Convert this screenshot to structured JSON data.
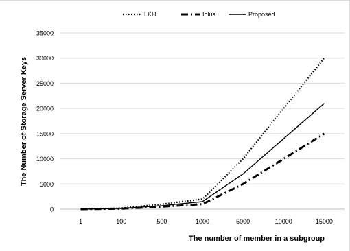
{
  "colors": {
    "series": "#000000",
    "grid": "#d9d9d9",
    "frame": "#d9d9d9",
    "background": "#ffffff"
  },
  "legend": {
    "placement": "top",
    "items": [
      "LKH",
      "Iolus",
      "Proposed"
    ]
  },
  "chart_data": {
    "type": "line",
    "title": "",
    "xlabel": "The number of member in a subgroup",
    "ylabel": "The Number  of Storage  Server  Keys",
    "categories": [
      "1",
      "100",
      "500",
      "1000",
      "5000",
      "10000",
      "15000"
    ],
    "ylim": [
      0,
      35000
    ],
    "yticks": [
      "0",
      "5000",
      "10000",
      "15000",
      "20000",
      "25000",
      "30000",
      "35000"
    ],
    "grid": true,
    "legend_placement": "top",
    "series": [
      {
        "name": "LKH",
        "style": "dotted",
        "values": [
          2,
          200,
          1000,
          2000,
          10000,
          20000,
          30000
        ]
      },
      {
        "name": "Iolus",
        "style": "dash-dot",
        "values": [
          1,
          100,
          500,
          1000,
          5000,
          10000,
          15000
        ]
      },
      {
        "name": "Proposed",
        "style": "solid",
        "values": [
          2,
          150,
          700,
          1500,
          7000,
          14000,
          21000
        ]
      }
    ]
  }
}
